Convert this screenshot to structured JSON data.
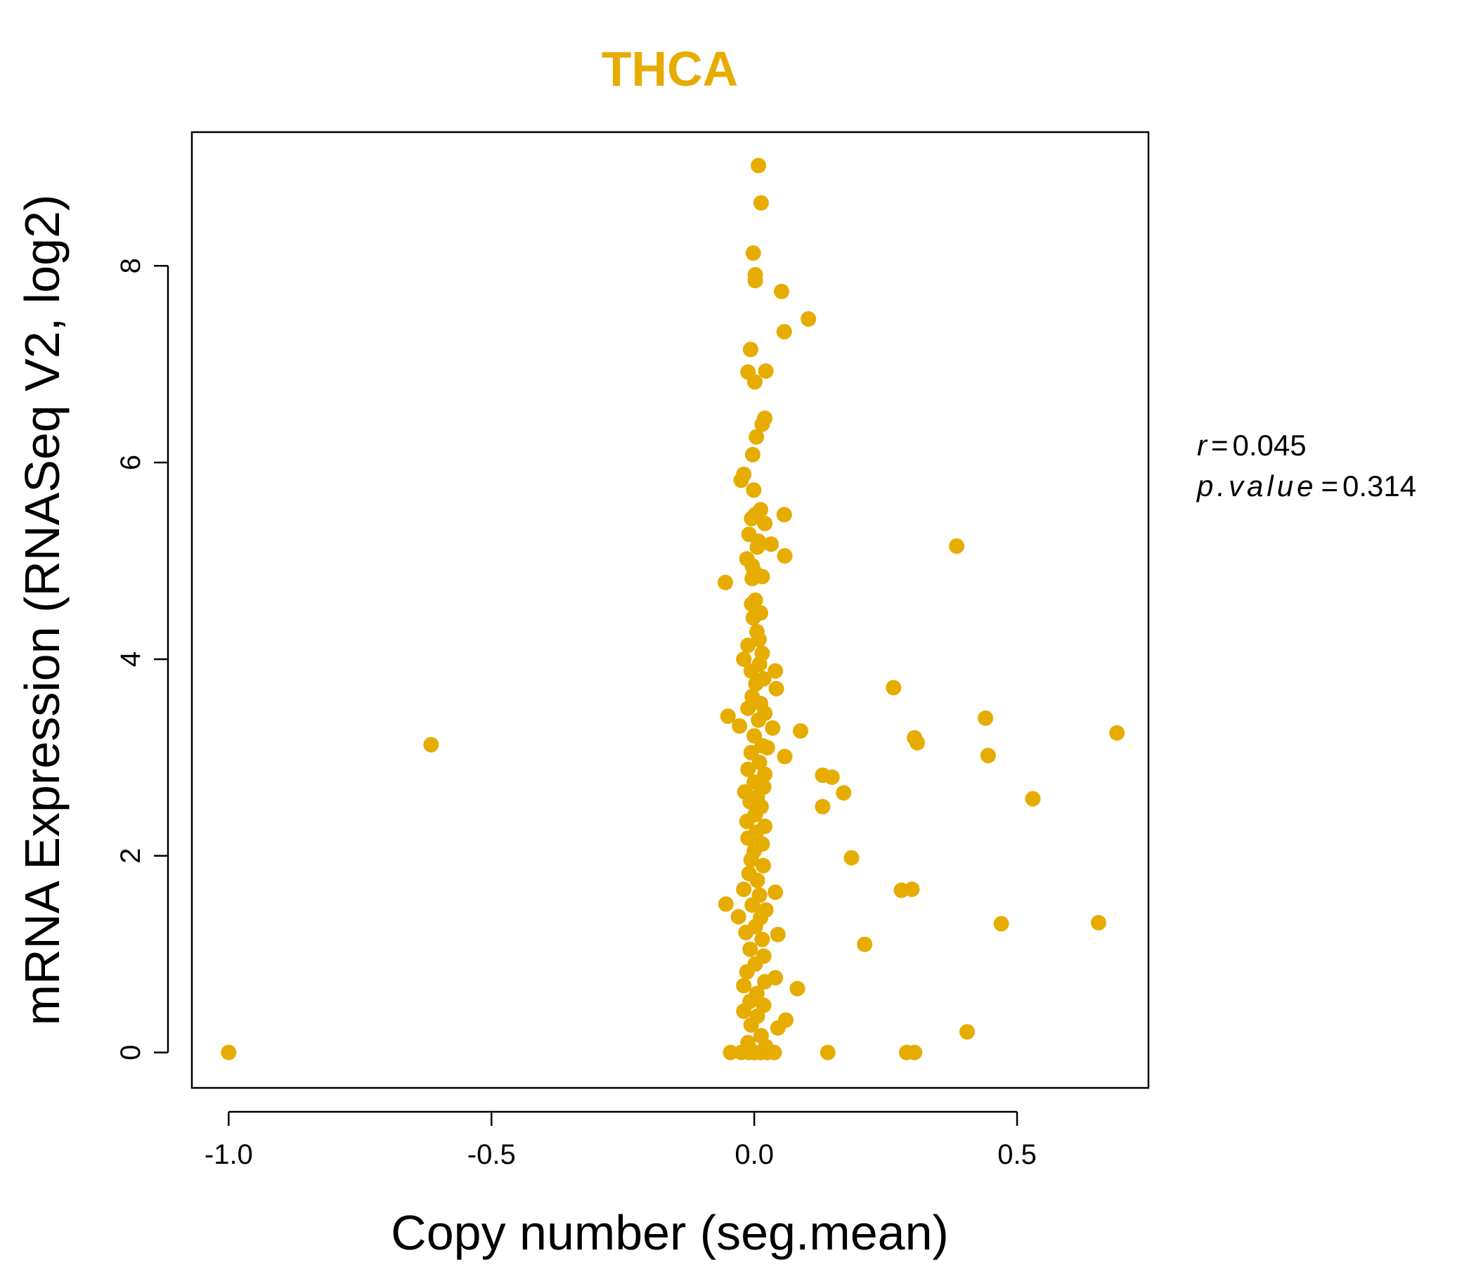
{
  "chart_data": {
    "type": "scatter",
    "title": "THCA",
    "xlabel": "Copy number (seg.mean)",
    "ylabel": "mRNA Expression (RNASeq V2, log2)",
    "xlim": [
      -1.07,
      0.75
    ],
    "ylim": [
      -0.36,
      9.36
    ],
    "x_ticks": [
      -1.0,
      -0.5,
      0.0,
      0.5
    ],
    "x_tick_labels": [
      "-1.0",
      "-0.5",
      "0.0",
      "0.5"
    ],
    "y_ticks": [
      0,
      2,
      4,
      6,
      8
    ],
    "y_tick_labels": [
      "0",
      "2",
      "4",
      "6",
      "8"
    ],
    "point_color": "#E6AC00",
    "title_color": "#E6AC00",
    "stats": {
      "r_label": "r",
      "r_value": "0.045",
      "p_label": "p.value",
      "p_value": "0.314"
    },
    "points": [
      [
        0.008,
        9.02
      ],
      [
        0.013,
        8.64
      ],
      [
        -0.002,
        8.13
      ],
      [
        0.002,
        7.91
      ],
      [
        0.002,
        7.85
      ],
      [
        0.052,
        7.74
      ],
      [
        0.103,
        7.46
      ],
      [
        0.057,
        7.33
      ],
      [
        -0.007,
        7.15
      ],
      [
        -0.012,
        6.92
      ],
      [
        0.022,
        6.93
      ],
      [
        0.001,
        6.82
      ],
      [
        0.02,
        6.45
      ],
      [
        0.015,
        6.39
      ],
      [
        0.004,
        6.26
      ],
      [
        -0.003,
        6.08
      ],
      [
        -0.02,
        5.88
      ],
      [
        -0.025,
        5.82
      ],
      [
        -0.001,
        5.72
      ],
      [
        0.012,
        5.52
      ],
      [
        0.002,
        5.47
      ],
      [
        0.057,
        5.47
      ],
      [
        -0.005,
        5.43
      ],
      [
        0.02,
        5.38
      ],
      [
        -0.01,
        5.27
      ],
      [
        0.008,
        5.2
      ],
      [
        0.032,
        5.17
      ],
      [
        0.006,
        5.14
      ],
      [
        0.058,
        5.05
      ],
      [
        0.385,
        5.15
      ],
      [
        -0.014,
        5.02
      ],
      [
        -0.004,
        4.95
      ],
      [
        0.0,
        4.89
      ],
      [
        0.015,
        4.84
      ],
      [
        -0.055,
        4.78
      ],
      [
        -0.004,
        4.82
      ],
      [
        0.002,
        4.6
      ],
      [
        -0.005,
        4.56
      ],
      [
        0.012,
        4.47
      ],
      [
        -0.002,
        4.42
      ],
      [
        0.005,
        4.28
      ],
      [
        0.009,
        4.2
      ],
      [
        -0.012,
        4.14
      ],
      [
        0.015,
        4.06
      ],
      [
        -0.02,
        4.0
      ],
      [
        0.01,
        3.95
      ],
      [
        -0.006,
        3.88
      ],
      [
        0.04,
        3.88
      ],
      [
        0.018,
        3.8
      ],
      [
        0.003,
        3.75
      ],
      [
        0.265,
        3.71
      ],
      [
        0.042,
        3.7
      ],
      [
        -0.004,
        3.62
      ],
      [
        0.012,
        3.55
      ],
      [
        -0.012,
        3.5
      ],
      [
        0.02,
        3.45
      ],
      [
        -0.05,
        3.42
      ],
      [
        0.44,
        3.4
      ],
      [
        0.008,
        3.38
      ],
      [
        -0.028,
        3.32
      ],
      [
        0.035,
        3.3
      ],
      [
        0.088,
        3.27
      ],
      [
        0.69,
        3.25
      ],
      [
        0.0,
        3.22
      ],
      [
        0.305,
        3.2
      ],
      [
        0.31,
        3.15
      ],
      [
        -0.615,
        3.13
      ],
      [
        0.015,
        3.12
      ],
      [
        0.025,
        3.1
      ],
      [
        -0.006,
        3.05
      ],
      [
        0.058,
        3.01
      ],
      [
        0.445,
        3.02
      ],
      [
        0.01,
        2.95
      ],
      [
        -0.012,
        2.88
      ],
      [
        0.02,
        2.83
      ],
      [
        0.13,
        2.82
      ],
      [
        0.148,
        2.8
      ],
      [
        0.0,
        2.75
      ],
      [
        0.018,
        2.7
      ],
      [
        -0.018,
        2.65
      ],
      [
        0.17,
        2.64
      ],
      [
        0.006,
        2.6
      ],
      [
        0.53,
        2.58
      ],
      [
        -0.008,
        2.55
      ],
      [
        0.013,
        2.5
      ],
      [
        0.13,
        2.5
      ],
      [
        0.002,
        2.42
      ],
      [
        -0.014,
        2.35
      ],
      [
        0.02,
        2.3
      ],
      [
        0.004,
        2.24
      ],
      [
        -0.012,
        2.18
      ],
      [
        0.015,
        2.12
      ],
      [
        0.0,
        2.05
      ],
      [
        0.185,
        1.98
      ],
      [
        -0.006,
        1.96
      ],
      [
        0.017,
        1.9
      ],
      [
        -0.01,
        1.82
      ],
      [
        0.006,
        1.75
      ],
      [
        0.04,
        1.63
      ],
      [
        -0.02,
        1.66
      ],
      [
        0.28,
        1.65
      ],
      [
        0.3,
        1.66
      ],
      [
        0.01,
        1.6
      ],
      [
        -0.054,
        1.51
      ],
      [
        -0.004,
        1.5
      ],
      [
        0.022,
        1.45
      ],
      [
        -0.03,
        1.38
      ],
      [
        0.012,
        1.37
      ],
      [
        0.47,
        1.31
      ],
      [
        0.655,
        1.32
      ],
      [
        0.002,
        1.28
      ],
      [
        -0.016,
        1.22
      ],
      [
        0.045,
        1.2
      ],
      [
        0.015,
        1.15
      ],
      [
        0.21,
        1.1
      ],
      [
        -0.008,
        1.05
      ],
      [
        0.018,
        0.98
      ],
      [
        0.002,
        0.9
      ],
      [
        -0.014,
        0.82
      ],
      [
        0.04,
        0.76
      ],
      [
        0.02,
        0.72
      ],
      [
        -0.02,
        0.68
      ],
      [
        0.082,
        0.65
      ],
      [
        0.005,
        0.6
      ],
      [
        -0.008,
        0.52
      ],
      [
        0.018,
        0.48
      ],
      [
        -0.02,
        0.42
      ],
      [
        0.006,
        0.37
      ],
      [
        0.06,
        0.33
      ],
      [
        0.045,
        0.25
      ],
      [
        -0.006,
        0.28
      ],
      [
        0.405,
        0.21
      ],
      [
        0.013,
        0.17
      ],
      [
        -0.012,
        0.1
      ],
      [
        0.022,
        0.06
      ],
      [
        -1.0,
        0.0
      ],
      [
        -0.045,
        0.0
      ],
      [
        -0.025,
        0.0
      ],
      [
        -0.01,
        0.0
      ],
      [
        0.0,
        0.0
      ],
      [
        0.012,
        0.0
      ],
      [
        0.025,
        0.0
      ],
      [
        0.038,
        0.0
      ],
      [
        0.14,
        0.0
      ],
      [
        0.29,
        0.0
      ],
      [
        0.305,
        0.0
      ]
    ]
  }
}
